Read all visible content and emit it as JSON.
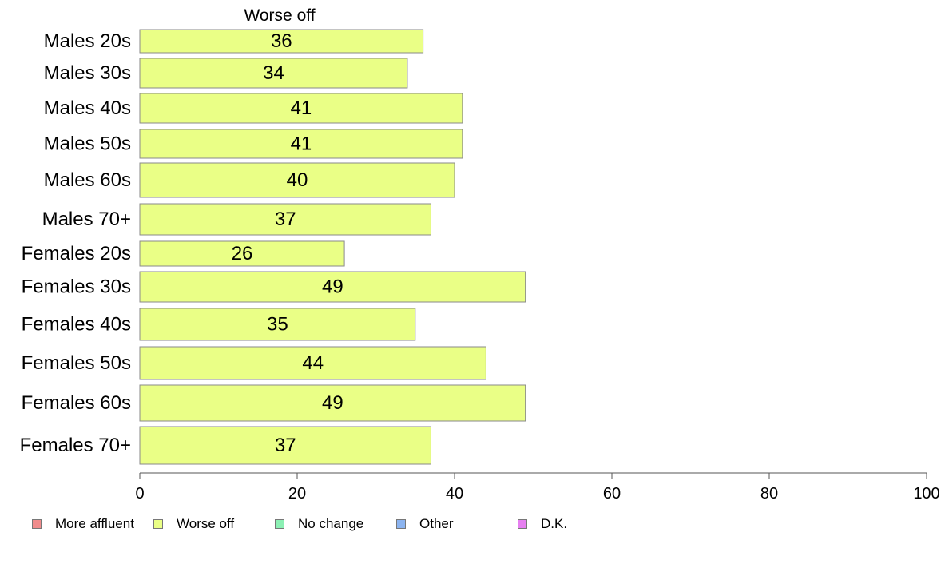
{
  "chart_data": {
    "type": "bar",
    "orientation": "horizontal",
    "title": "Worse off",
    "categories": [
      "Males 20s",
      "Males 30s",
      "Males 40s",
      "Males 50s",
      "Males 60s",
      "Males 70+",
      "Females 20s",
      "Females 30s",
      "Females 40s",
      "Females 50s",
      "Females 60s",
      "Females 70+"
    ],
    "series": [
      {
        "name": "Worse off",
        "values": [
          36,
          34,
          41,
          41,
          40,
          37,
          26,
          49,
          35,
          44,
          49,
          37
        ],
        "color": "#eaff86"
      }
    ],
    "data_labels": [
      "36",
      "34",
      "41",
      "41",
      "40",
      "37",
      "26",
      "49",
      "35",
      "44",
      "49",
      "37"
    ],
    "xlim": [
      0,
      100
    ],
    "xticks": [
      "0",
      "20",
      "40",
      "60",
      "80",
      "100"
    ],
    "grid": false,
    "legend_position": "bottom",
    "legend": [
      {
        "label": "More affluent",
        "color": "#f08c8c"
      },
      {
        "label": "Worse off",
        "color": "#eaff86"
      },
      {
        "label": "No change",
        "color": "#8cf0b4"
      },
      {
        "label": "Other",
        "color": "#8cb4f0"
      },
      {
        "label": "D.K.",
        "color": "#e680f0"
      }
    ]
  }
}
